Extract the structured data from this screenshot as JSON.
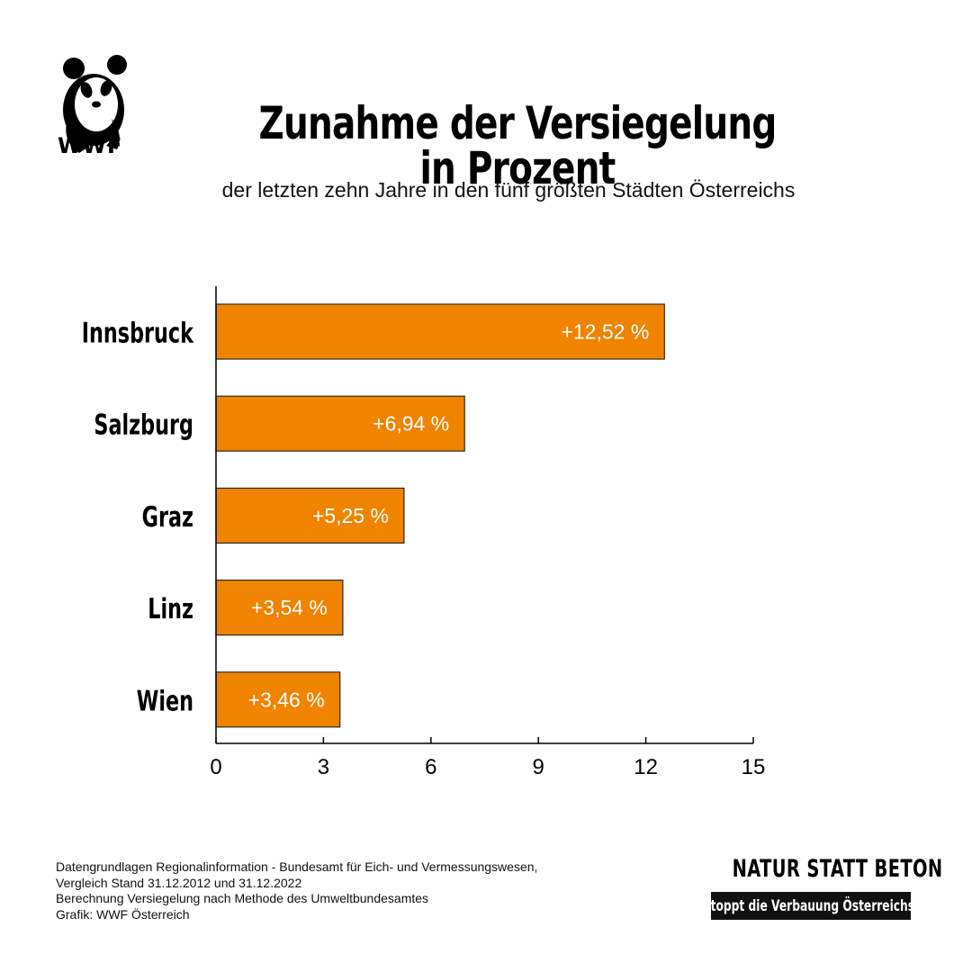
{
  "logo": {
    "text": "WWF"
  },
  "title": "Zunahme der Versiegelung in Prozent",
  "subtitle": "der letzten zehn Jahre in den fünf größten Städten Österreichs",
  "chart_data": {
    "type": "bar",
    "orientation": "horizontal",
    "categories": [
      "Innsbruck",
      "Salzburg",
      "Graz",
      "Linz",
      "Wien"
    ],
    "values": [
      12.52,
      6.94,
      5.25,
      3.54,
      3.46
    ],
    "value_labels": [
      "+12,52 %",
      "+6,94 %",
      "+5,25 %",
      "+3,54 %",
      "+3,46 %"
    ],
    "xlim": [
      0,
      15
    ],
    "xticks": [
      0,
      3,
      6,
      9,
      12,
      15
    ],
    "xtick_labels": [
      "0",
      "3",
      "6",
      "9",
      "12",
      "15"
    ],
    "grid": false,
    "bar_color": "#F08300",
    "bar_edge_color": "#2b2b2b"
  },
  "footnote": {
    "lines": [
      "Datengrundlagen Regionalinformation - Bundesamt für Eich- und Vermessungswesen,",
      "Vergleich Stand 31.12.2012 und 31.12.2022",
      "Berechnung Versiegelung nach Methode des Umweltbundesamtes",
      "Grafik: WWF Österreich"
    ]
  },
  "campaign": {
    "title": "NATUR STATT BETON",
    "slogan": "Stoppt die Verbauung Österreichs!"
  }
}
